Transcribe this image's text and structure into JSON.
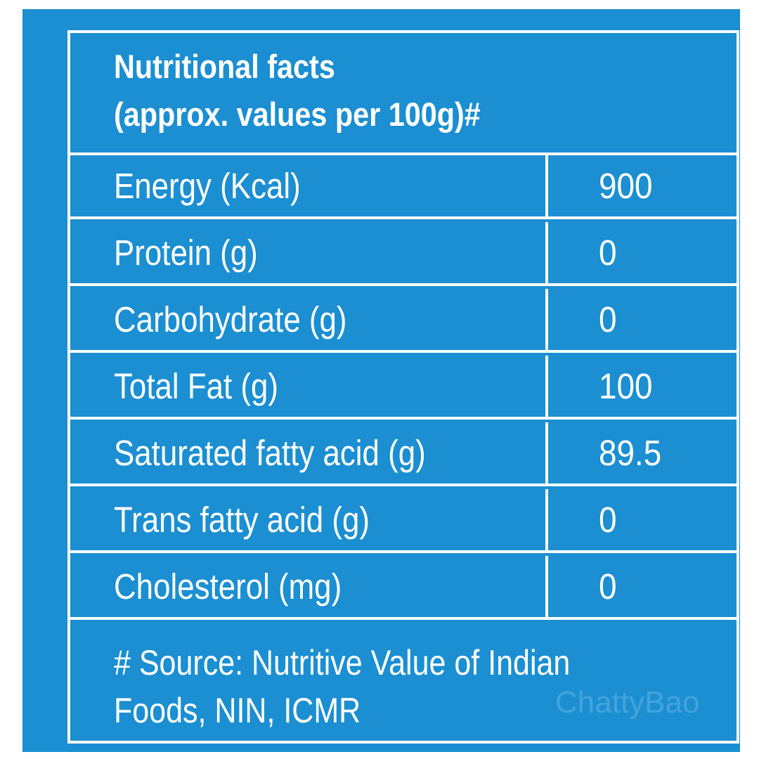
{
  "header": {
    "title": "Nutritional facts",
    "subtitle": "(approx. values per 100g)#"
  },
  "rows": [
    {
      "label": "Energy (Kcal)",
      "value": "900"
    },
    {
      "label": "Protein (g)",
      "value": "0"
    },
    {
      "label": "Carbohydrate (g)",
      "value": "0"
    },
    {
      "label": "Total Fat (g)",
      "value": "100"
    },
    {
      "label": "Saturated fatty acid (g)",
      "value": "89.5"
    },
    {
      "label": "Trans fatty acid (g)",
      "value": "0"
    },
    {
      "label": "Cholesterol (mg)",
      "value": "0"
    }
  ],
  "footer": {
    "line1": "# Source: Nutritive Value of Indian",
    "line2": "Foods,  NIN, ICMR"
  },
  "watermark": "ChattyBao",
  "colors": {
    "background": "#1b8fd2",
    "text": "#ffffff"
  }
}
